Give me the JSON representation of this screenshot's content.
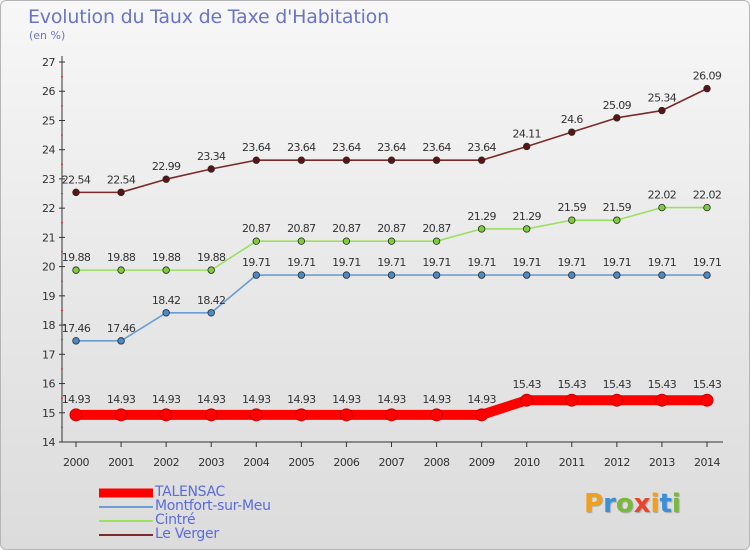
{
  "title": "Evolution du Taux de Taxe d'Habitation",
  "unit_label": "(en %)",
  "logo": {
    "text": "Proxiti",
    "letters": [
      {
        "ch": "P",
        "color": "#f0a020"
      },
      {
        "ch": "r",
        "color": "#3a8fd8"
      },
      {
        "ch": "o",
        "color": "#7ab83a"
      },
      {
        "ch": "x",
        "color": "#e8452c"
      },
      {
        "ch": "i",
        "color": "#f0a020"
      },
      {
        "ch": "t",
        "color": "#3a8fd8"
      },
      {
        "ch": "i",
        "color": "#7ab83a"
      }
    ]
  },
  "chart_data": {
    "type": "line",
    "title": "Evolution du Taux de Taxe d'Habitation",
    "ylabel": "(en %)",
    "xlabel": "",
    "ylim": [
      14,
      27
    ],
    "y_ticks": [
      14,
      15,
      16,
      17,
      18,
      19,
      20,
      21,
      22,
      23,
      24,
      25,
      26,
      27
    ],
    "x": [
      "2000",
      "2001",
      "2002",
      "2003",
      "2004",
      "2005",
      "2006",
      "2007",
      "2008",
      "2009",
      "2010",
      "2011",
      "2012",
      "2013",
      "2014"
    ],
    "grid": false,
    "legend_position": "bottom-left",
    "series": [
      {
        "name": "TALENSAC",
        "color": "#ff0000",
        "marker_color": "#ff0000",
        "emphasis": true,
        "values": [
          14.93,
          14.93,
          14.93,
          14.93,
          14.93,
          14.93,
          14.93,
          14.93,
          14.93,
          14.93,
          15.43,
          15.43,
          15.43,
          15.43,
          15.43
        ],
        "labels": [
          "14.93",
          "14.93",
          "14.93",
          "14.93",
          "14.93",
          "14.93",
          "14.93",
          "14.93",
          "14.93",
          "14.93",
          "15.43",
          "15.43",
          "15.43",
          "15.43",
          "15.43"
        ]
      },
      {
        "name": "Montfort-sur-Meu",
        "color": "#6a9ed0",
        "marker_color": "#4a8ac8",
        "emphasis": false,
        "values": [
          17.46,
          17.46,
          18.42,
          18.42,
          19.71,
          19.71,
          19.71,
          19.71,
          19.71,
          19.71,
          19.71,
          19.71,
          19.71,
          19.71,
          19.71
        ],
        "labels": [
          "17.46",
          "17.46",
          "18.42",
          "18.42",
          "19.71",
          "19.71",
          "19.71",
          "19.71",
          "19.71",
          "19.71",
          "19.71",
          "19.71",
          "19.71",
          "19.71",
          "19.71"
        ]
      },
      {
        "name": "Cintré",
        "color": "#9be060",
        "marker_color": "#7ccc3c",
        "emphasis": false,
        "values": [
          19.88,
          19.88,
          19.88,
          19.88,
          20.87,
          20.87,
          20.87,
          20.87,
          20.87,
          21.29,
          21.29,
          21.59,
          21.59,
          22.02,
          22.02
        ],
        "labels": [
          "19.88",
          "19.88",
          "19.88",
          "19.88",
          "20.87",
          "20.87",
          "20.87",
          "20.87",
          "20.87",
          "21.29",
          "21.29",
          "21.59",
          "21.59",
          "22.02",
          "22.02"
        ]
      },
      {
        "name": "Le Verger",
        "color": "#7a2a2a",
        "marker_color": "#5a1414",
        "emphasis": false,
        "values": [
          22.54,
          22.54,
          22.99,
          23.34,
          23.64,
          23.64,
          23.64,
          23.64,
          23.64,
          23.64,
          24.11,
          24.6,
          25.09,
          25.34,
          26.09
        ],
        "labels": [
          "22.54",
          "22.54",
          "22.99",
          "23.34",
          "23.64",
          "23.64",
          "23.64",
          "23.64",
          "23.64",
          "23.64",
          "24.11",
          "24.6",
          "25.09",
          "25.34",
          "26.09"
        ]
      }
    ]
  }
}
